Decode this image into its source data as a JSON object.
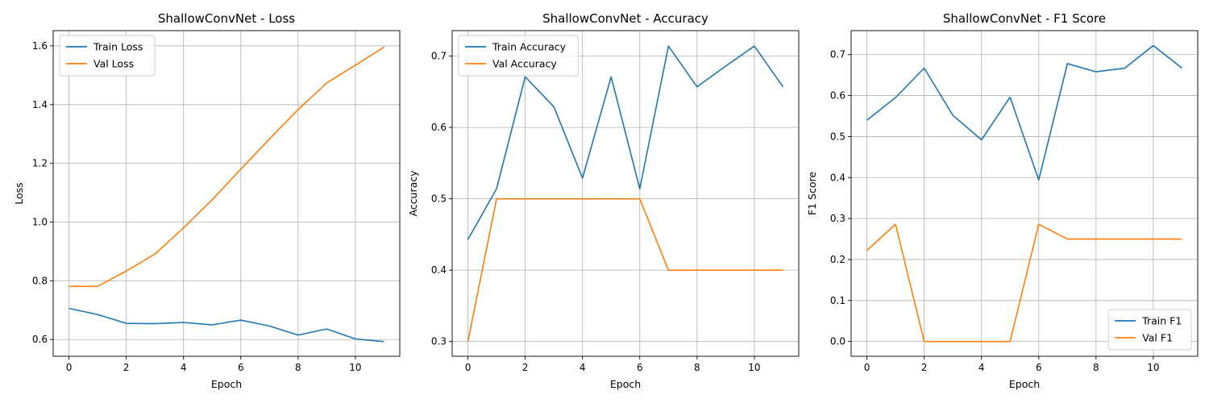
{
  "colors": {
    "train": "#1f77b4",
    "val": "#ff7f0e",
    "grid": "#b0b0b0"
  },
  "chart_data": [
    {
      "type": "line",
      "title": "ShallowConvNet - Loss",
      "xlabel": "Epoch",
      "ylabel": "Loss",
      "grid": true,
      "legend_position": "top-left",
      "x": [
        0,
        1,
        2,
        3,
        4,
        5,
        6,
        7,
        8,
        9,
        10,
        11
      ],
      "xlim": [
        -0.55,
        11.55
      ],
      "ylim": [
        0.543,
        1.652
      ],
      "xticks": [
        0,
        2,
        4,
        6,
        8,
        10
      ],
      "yticks": [
        0.6,
        0.8,
        1.0,
        1.2,
        1.4,
        1.6
      ],
      "ytick_labels": [
        "0.6",
        "0.8",
        "1.0",
        "1.2",
        "1.4",
        "1.6"
      ],
      "series": [
        {
          "name": "Train Loss",
          "color": "#1f77b4",
          "values": [
            0.706,
            0.685,
            0.655,
            0.654,
            0.658,
            0.65,
            0.666,
            0.646,
            0.615,
            0.636,
            0.602,
            0.593
          ]
        },
        {
          "name": "Val Loss",
          "color": "#ff7f0e",
          "values": [
            0.781,
            0.781,
            0.833,
            0.891,
            0.98,
            1.076,
            1.18,
            1.283,
            1.383,
            1.474,
            1.534,
            1.596
          ]
        }
      ]
    },
    {
      "type": "line",
      "title": "ShallowConvNet - Accuracy",
      "xlabel": "Epoch",
      "ylabel": "Accuracy",
      "grid": true,
      "legend_position": "top-left",
      "x": [
        0,
        1,
        2,
        3,
        4,
        5,
        6,
        7,
        8,
        9,
        10,
        11
      ],
      "xlim": [
        -0.55,
        11.55
      ],
      "ylim": [
        0.2793,
        0.7357
      ],
      "xticks": [
        0,
        2,
        4,
        6,
        8,
        10
      ],
      "yticks": [
        0.3,
        0.4,
        0.5,
        0.6,
        0.7
      ],
      "ytick_labels": [
        "0.3",
        "0.4",
        "0.5",
        "0.6",
        "0.7"
      ],
      "series": [
        {
          "name": "Train Accuracy",
          "color": "#1f77b4",
          "values": [
            0.443,
            0.514,
            0.671,
            0.629,
            0.529,
            0.671,
            0.514,
            0.714,
            0.657,
            0.686,
            0.714,
            0.657
          ]
        },
        {
          "name": "Val Accuracy",
          "color": "#ff7f0e",
          "values": [
            0.3,
            0.5,
            0.5,
            0.5,
            0.5,
            0.5,
            0.5,
            0.4,
            0.4,
            0.4,
            0.4,
            0.4
          ]
        }
      ]
    },
    {
      "type": "line",
      "title": "ShallowConvNet - F1 Score",
      "xlabel": "Epoch",
      "ylabel": "F1 Score",
      "grid": true,
      "legend_position": "bottom-right",
      "x": [
        0,
        1,
        2,
        3,
        4,
        5,
        6,
        7,
        8,
        9,
        10,
        11
      ],
      "xlim": [
        -0.55,
        11.55
      ],
      "ylim": [
        -0.0361,
        0.7585
      ],
      "xticks": [
        0,
        2,
        4,
        6,
        8,
        10
      ],
      "yticks": [
        0.0,
        0.1,
        0.2,
        0.3,
        0.4,
        0.5,
        0.6,
        0.7
      ],
      "ytick_labels": [
        "0.0",
        "0.1",
        "0.2",
        "0.3",
        "0.4",
        "0.5",
        "0.6",
        "0.7"
      ],
      "series": [
        {
          "name": "Train F1",
          "color": "#1f77b4",
          "values": [
            0.54,
            0.595,
            0.667,
            0.552,
            0.492,
            0.596,
            0.394,
            0.678,
            0.658,
            0.667,
            0.722,
            0.667
          ]
        },
        {
          "name": "Val F1",
          "color": "#ff7f0e",
          "values": [
            0.222,
            0.286,
            0.0,
            0.0,
            0.0,
            0.0,
            0.286,
            0.25,
            0.25,
            0.25,
            0.25,
            0.25
          ]
        }
      ]
    }
  ]
}
